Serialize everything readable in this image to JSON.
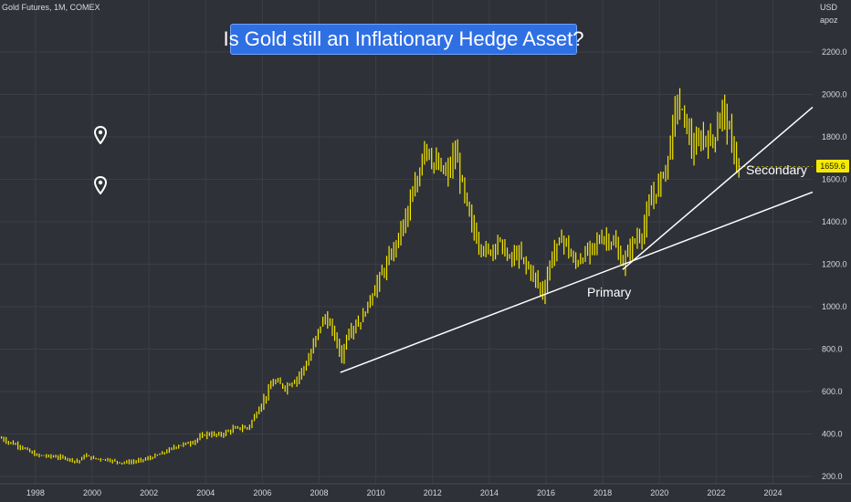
{
  "header": {
    "symbol_text": "Gold Futures, 1M, COMEX"
  },
  "title": "Is Gold still an Inflationary Hedge Asset?",
  "price_axis": {
    "currency": "USD",
    "unit": "apoz"
  },
  "last_price": "1659.6",
  "trendlines": [
    {
      "label": "Primary",
      "from": {
        "year": 2008.75,
        "price": 690
      },
      "to": {
        "year": 2025.4,
        "price": 1540
      }
    },
    {
      "label": "Secondary",
      "from": {
        "year": 2018.7,
        "price": 1175
      },
      "to": {
        "year": 2025.4,
        "price": 1940
      }
    }
  ],
  "icons": {
    "pin_1": "map-pin-icon",
    "pin_2": "map-pin-icon"
  },
  "colors": {
    "background": "#2f3138",
    "candles": "#f6ea00",
    "title_box": "#2f6fe4",
    "trendline": "#ffffff"
  },
  "chart_data": {
    "type": "candlestick",
    "title": "Is Gold still an Inflationary Hedge Asset?",
    "xlabel": "",
    "ylabel": "",
    "x_ticks": [
      "1998",
      "2000",
      "2002",
      "2004",
      "2006",
      "2008",
      "2010",
      "2012",
      "2014",
      "2016",
      "2018",
      "2020",
      "2022",
      "2024"
    ],
    "y_ticks": [
      "200.0",
      "400.0",
      "600.0",
      "800.0",
      "1000.0",
      "1200.0",
      "1400.0",
      "1600.0",
      "1800.0",
      "2000.0",
      "2200.0"
    ],
    "xlim": [
      1996.75,
      2025.4
    ],
    "ylim": [
      160,
      2310
    ],
    "grid": true,
    "series": [
      {
        "values": [
          {
            "x": 1996.8,
            "y": 380
          },
          {
            "x": 1997.0,
            "y": 365
          },
          {
            "x": 1997.5,
            "y": 340
          },
          {
            "x": 1998.0,
            "y": 300
          },
          {
            "x": 1998.5,
            "y": 295
          },
          {
            "x": 1999.0,
            "y": 288
          },
          {
            "x": 1999.5,
            "y": 270
          },
          {
            "x": 1999.75,
            "y": 300
          },
          {
            "x": 2000.0,
            "y": 285
          },
          {
            "x": 2000.5,
            "y": 280
          },
          {
            "x": 2001.0,
            "y": 265
          },
          {
            "x": 2001.5,
            "y": 270
          },
          {
            "x": 2002.0,
            "y": 285
          },
          {
            "x": 2002.5,
            "y": 310
          },
          {
            "x": 2003.0,
            "y": 345
          },
          {
            "x": 2003.5,
            "y": 360
          },
          {
            "x": 2004.0,
            "y": 400
          },
          {
            "x": 2004.5,
            "y": 395
          },
          {
            "x": 2005.0,
            "y": 425
          },
          {
            "x": 2005.5,
            "y": 430
          },
          {
            "x": 2006.0,
            "y": 550
          },
          {
            "x": 2006.4,
            "y": 650
          },
          {
            "x": 2006.8,
            "y": 620
          },
          {
            "x": 2007.2,
            "y": 660
          },
          {
            "x": 2007.6,
            "y": 740
          },
          {
            "x": 2008.0,
            "y": 900
          },
          {
            "x": 2008.2,
            "y": 950
          },
          {
            "x": 2008.5,
            "y": 880
          },
          {
            "x": 2008.8,
            "y": 760
          },
          {
            "x": 2009.0,
            "y": 880
          },
          {
            "x": 2009.5,
            "y": 940
          },
          {
            "x": 2010.0,
            "y": 1100
          },
          {
            "x": 2010.5,
            "y": 1230
          },
          {
            "x": 2011.0,
            "y": 1400
          },
          {
            "x": 2011.5,
            "y": 1600
          },
          {
            "x": 2011.7,
            "y": 1780
          },
          {
            "x": 2012.0,
            "y": 1680
          },
          {
            "x": 2012.5,
            "y": 1620
          },
          {
            "x": 2012.8,
            "y": 1720
          },
          {
            "x": 2013.0,
            "y": 1600
          },
          {
            "x": 2013.3,
            "y": 1420
          },
          {
            "x": 2013.6,
            "y": 1300
          },
          {
            "x": 2014.0,
            "y": 1250
          },
          {
            "x": 2014.3,
            "y": 1320
          },
          {
            "x": 2014.7,
            "y": 1220
          },
          {
            "x": 2015.0,
            "y": 1250
          },
          {
            "x": 2015.5,
            "y": 1160
          },
          {
            "x": 2015.9,
            "y": 1060
          },
          {
            "x": 2016.2,
            "y": 1240
          },
          {
            "x": 2016.6,
            "y": 1330
          },
          {
            "x": 2017.0,
            "y": 1200
          },
          {
            "x": 2017.5,
            "y": 1260
          },
          {
            "x": 2018.0,
            "y": 1330
          },
          {
            "x": 2018.4,
            "y": 1300
          },
          {
            "x": 2018.7,
            "y": 1200
          },
          {
            "x": 2019.0,
            "y": 1290
          },
          {
            "x": 2019.4,
            "y": 1350
          },
          {
            "x": 2019.7,
            "y": 1500
          },
          {
            "x": 2020.0,
            "y": 1580
          },
          {
            "x": 2020.3,
            "y": 1700
          },
          {
            "x": 2020.6,
            "y": 1970
          },
          {
            "x": 2020.9,
            "y": 1880
          },
          {
            "x": 2021.2,
            "y": 1730
          },
          {
            "x": 2021.5,
            "y": 1800
          },
          {
            "x": 2021.8,
            "y": 1780
          },
          {
            "x": 2022.0,
            "y": 1820
          },
          {
            "x": 2022.2,
            "y": 1950
          },
          {
            "x": 2022.4,
            "y": 1850
          },
          {
            "x": 2022.6,
            "y": 1740
          },
          {
            "x": 2022.8,
            "y": 1659.6
          }
        ]
      }
    ]
  }
}
